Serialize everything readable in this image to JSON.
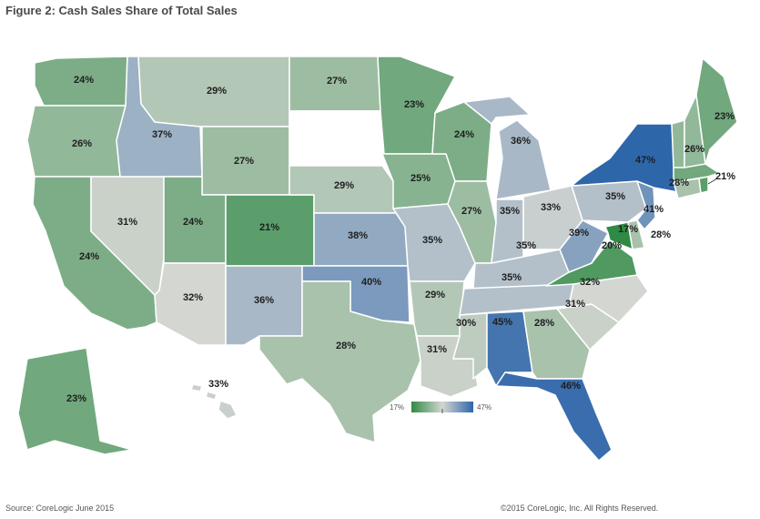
{
  "title": "Figure 2: Cash Sales Share of Total Sales",
  "source": "Source: CoreLogic June 2015",
  "copyright": "©2015 CoreLogic, Inc. All Rights Reserved.",
  "legend": {
    "min_label": "17%",
    "max_label": "47%",
    "min": 17,
    "max": 47
  },
  "colors": {
    "low": "#2f8a45",
    "mid": "#d4d6d2",
    "high": "#2e66aa",
    "none": "#ffffff"
  },
  "states": {
    "WA": {
      "value": 24,
      "label": "24%"
    },
    "OR": {
      "value": 26,
      "label": "26%"
    },
    "CA": {
      "value": 24,
      "label": "24%"
    },
    "NV": {
      "value": 31,
      "label": "31%"
    },
    "ID": {
      "value": 37,
      "label": "37%"
    },
    "MT": {
      "value": 29,
      "label": "29%"
    },
    "WY": {
      "value": 27,
      "label": "27%"
    },
    "UT": {
      "value": 24,
      "label": "24%"
    },
    "AZ": {
      "value": 32,
      "label": "32%"
    },
    "CO": {
      "value": 21,
      "label": "21%"
    },
    "NM": {
      "value": 36,
      "label": "36%"
    },
    "ND": {
      "value": 27,
      "label": "27%"
    },
    "SD": {
      "value": null,
      "label": ""
    },
    "NE": {
      "value": 29,
      "label": "29%"
    },
    "KS": {
      "value": 38,
      "label": "38%"
    },
    "OK": {
      "value": 40,
      "label": "40%"
    },
    "TX": {
      "value": 28,
      "label": "28%"
    },
    "MN": {
      "value": 23,
      "label": "23%"
    },
    "IA": {
      "value": 25,
      "label": "25%"
    },
    "MO": {
      "value": 35,
      "label": "35%"
    },
    "AR": {
      "value": 29,
      "label": "29%"
    },
    "LA": {
      "value": 31,
      "label": "31%"
    },
    "WI": {
      "value": 24,
      "label": "24%"
    },
    "IL": {
      "value": 27,
      "label": "27%"
    },
    "MI": {
      "value": 36,
      "label": "36%"
    },
    "IN": {
      "value": 35,
      "label": "35%"
    },
    "OH": {
      "value": 33,
      "label": "33%"
    },
    "KY": {
      "value": 35,
      "label": "35%"
    },
    "TN": {
      "value": 35,
      "label": "35%"
    },
    "MS": {
      "value": 30,
      "label": "30%"
    },
    "AL": {
      "value": 45,
      "label": "45%"
    },
    "GA": {
      "value": 28,
      "label": "28%"
    },
    "FL": {
      "value": 46,
      "label": "46%"
    },
    "SC": {
      "value": 31,
      "label": "31%"
    },
    "NC": {
      "value": 32,
      "label": "32%"
    },
    "VA": {
      "value": 20,
      "label": "20%"
    },
    "WV": {
      "value": 39,
      "label": "39%"
    },
    "MD": {
      "value": 17,
      "label": "17%"
    },
    "DE": {
      "value": 28,
      "label": "28%"
    },
    "PA": {
      "value": 35,
      "label": "35%"
    },
    "NJ": {
      "value": 41,
      "label": "41%"
    },
    "NY": {
      "value": 47,
      "label": "47%"
    },
    "CT": {
      "value": 28,
      "label": "28%"
    },
    "RI": {
      "value": 21,
      "label": "21%"
    },
    "MA": {
      "value": 23,
      "label": ""
    },
    "VT": {
      "value": 26,
      "label": ""
    },
    "NH": {
      "value": 26,
      "label": "26%"
    },
    "ME": {
      "value": 23,
      "label": "23%"
    },
    "AK": {
      "value": 23,
      "label": "23%"
    },
    "HI": {
      "value": 33,
      "label": "33%"
    }
  }
}
